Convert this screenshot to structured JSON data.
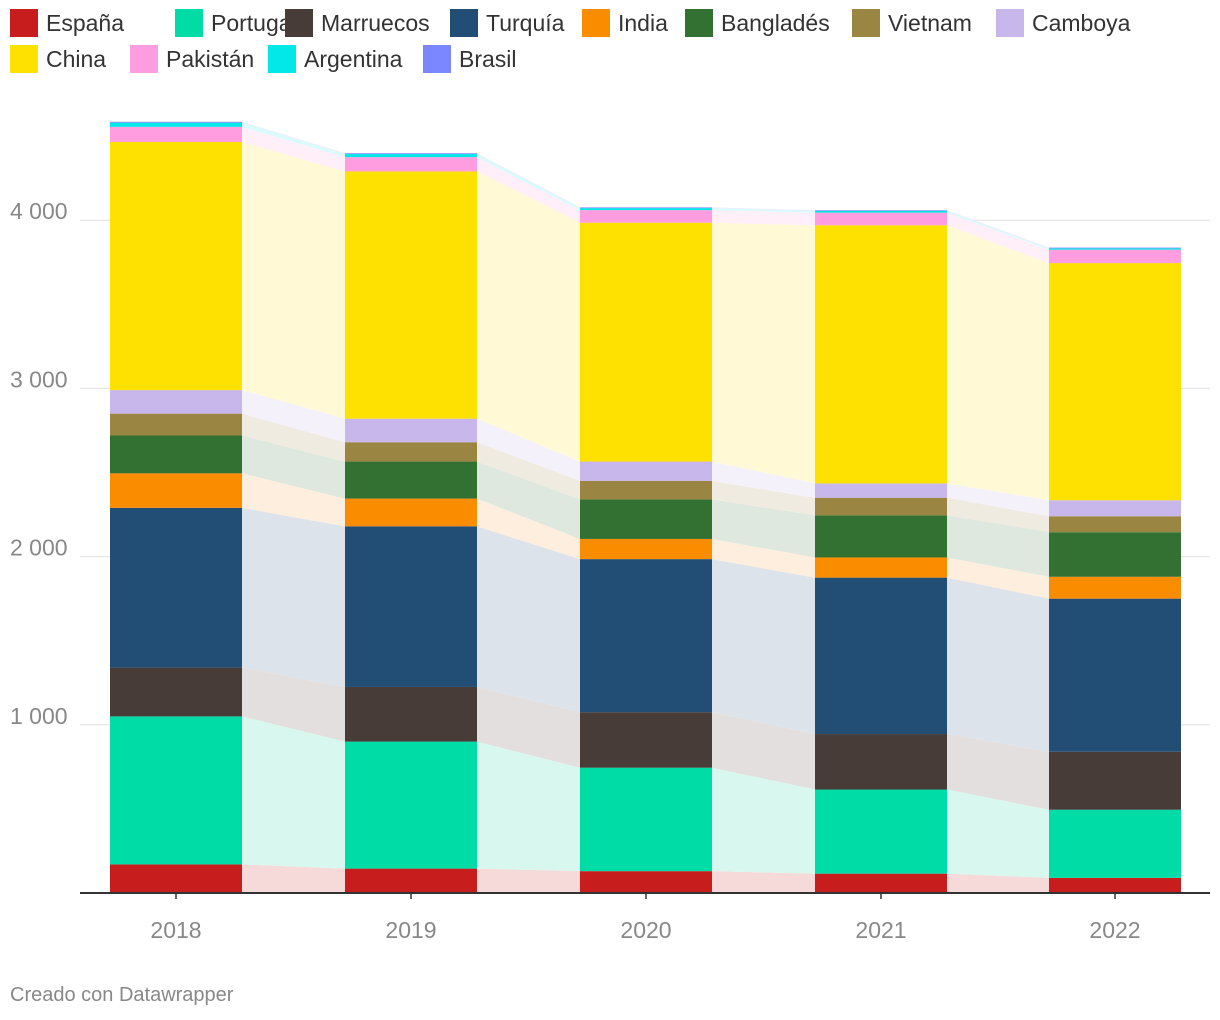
{
  "chart_data": {
    "type": "bar",
    "stacked": true,
    "categories": [
      "2018",
      "2019",
      "2020",
      "2021",
      "2022"
    ],
    "y_ticks": [
      1000,
      2000,
      3000,
      4000
    ],
    "y_tick_labels": [
      "1 000",
      "2 000",
      "3 000",
      "4 000"
    ],
    "ylim": [
      0,
      4700
    ],
    "grid": true,
    "legend_position": "top-left",
    "series": [
      {
        "name": "España",
        "color": "#c71e1d",
        "area_color": "#f6dada",
        "values": [
          170,
          145,
          130,
          115,
          90
        ]
      },
      {
        "name": "Portugal",
        "color": "#00dca6",
        "area_color": "#d8f8ef",
        "values": [
          880,
          755,
          615,
          500,
          405
        ]
      },
      {
        "name": "Marruecos",
        "color": "#473c38",
        "area_color": "#e3dfde",
        "values": [
          290,
          325,
          330,
          330,
          345
        ]
      },
      {
        "name": "Turquía",
        "color": "#224d75",
        "area_color": "#dde3ea",
        "values": [
          950,
          955,
          910,
          930,
          910
        ]
      },
      {
        "name": "India",
        "color": "#fa8c00",
        "area_color": "#feeedd",
        "values": [
          205,
          165,
          120,
          120,
          130
        ]
      },
      {
        "name": "Bangladés",
        "color": "#337132",
        "area_color": "#dee8de",
        "values": [
          225,
          220,
          235,
          250,
          265
        ]
      },
      {
        "name": "Vietnam",
        "color": "#9b8543",
        "area_color": "#efebe0",
        "values": [
          130,
          115,
          110,
          105,
          95
        ]
      },
      {
        "name": "Camboya",
        "color": "#c7b7ea",
        "area_color": "#f4f1fb",
        "values": [
          140,
          140,
          115,
          85,
          95
        ]
      },
      {
        "name": "China",
        "color": "#ffe100",
        "area_color": "#fff9d6",
        "values": [
          1475,
          1470,
          1420,
          1535,
          1410
        ]
      },
      {
        "name": "Pakistán",
        "color": "#ff9de0",
        "area_color": "#ffeff9",
        "values": [
          90,
          85,
          75,
          75,
          80
        ]
      },
      {
        "name": "Argentina",
        "color": "#00e8e8",
        "area_color": "#d9fbfb",
        "values": [
          25,
          18,
          12,
          10,
          8
        ]
      },
      {
        "name": "Brasil",
        "color": "#7b87ff",
        "area_color": "#e8eaff",
        "values": [
          5,
          5,
          4,
          4,
          4
        ]
      }
    ]
  },
  "credit": "Creado con Datawrapper"
}
